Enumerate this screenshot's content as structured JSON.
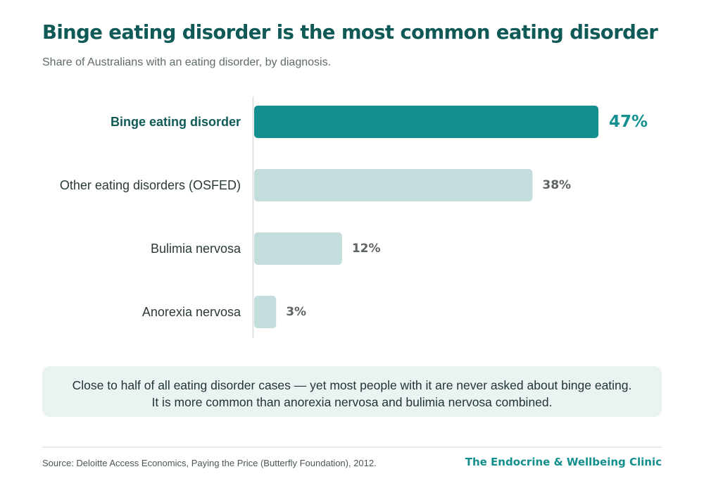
{
  "header": {
    "title": "Binge eating disorder is the most common eating disorder",
    "subtitle": "Share of Australians with an eating disorder, by diagnosis."
  },
  "chart_data": {
    "type": "bar",
    "orientation": "horizontal",
    "categories": [
      "Binge eating disorder",
      "Other eating disorders (OSFED)",
      "Bulimia nervosa",
      "Anorexia nervosa"
    ],
    "values": [
      47,
      38,
      12,
      3
    ],
    "value_labels": [
      "47%",
      "38%",
      "12%",
      "3%"
    ],
    "highlighted_category": "Binge eating disorder",
    "xlim": [
      0,
      47
    ],
    "grid": false,
    "colors": {
      "highlight_bar": "#128f8e",
      "other_bars": "#c3dddc",
      "highlight_label": "#0f5a57",
      "highlight_value": "#128f8e",
      "other_label": "#2a3a39",
      "other_value": "#5e6363",
      "axis_line": "#d6dede"
    }
  },
  "callout": {
    "line1": "Close to half of all eating disorder cases — yet most people with it are never asked about binge eating.",
    "line2": "It is more common than anorexia nervosa and bulimia nervosa combined."
  },
  "footer": {
    "source": "Source: Deloitte Access Economics, Paying the Price (Butterfly Foundation), 2012.",
    "brand": "The Endocrine & Wellbeing Clinic"
  }
}
